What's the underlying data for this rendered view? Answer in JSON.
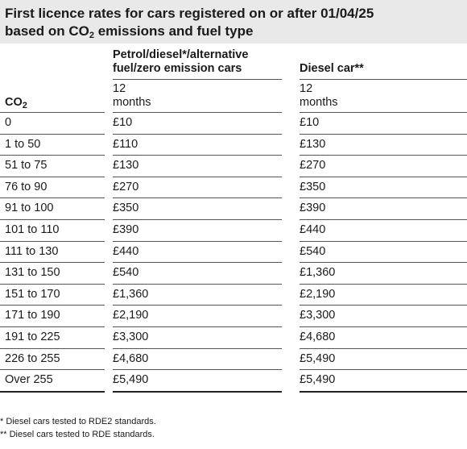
{
  "title": {
    "line1": "First licence rates for cars registered on or after 01/04/25",
    "line2_pre": "based on CO",
    "line2_sub": "2",
    "line2_post": " emissions and fuel type"
  },
  "headers": {
    "co2_pre": "CO",
    "co2_sub": "2",
    "petrol_line1": "Petrol/diesel*/alternative",
    "petrol_line2": "fuel/zero emission cars",
    "diesel": "Diesel car**",
    "period_line1": "12",
    "period_line2": "months"
  },
  "rows": [
    {
      "band": "0",
      "petrol": "£10",
      "diesel": "£10"
    },
    {
      "band": "1 to 50",
      "petrol": "£110",
      "diesel": "£130"
    },
    {
      "band": "51 to 75",
      "petrol": "£130",
      "diesel": "£270"
    },
    {
      "band": "76 to 90",
      "petrol": "£270",
      "diesel": "£350"
    },
    {
      "band": "91 to 100",
      "petrol": "£350",
      "diesel": "£390"
    },
    {
      "band": "101 to 110",
      "petrol": "£390",
      "diesel": "£440"
    },
    {
      "band": "111 to 130",
      "petrol": "£440",
      "diesel": "£540"
    },
    {
      "band": "131 to 150",
      "petrol": "£540",
      "diesel": "£1,360"
    },
    {
      "band": "151 to 170",
      "petrol": "£1,360",
      "diesel": "£2,190"
    },
    {
      "band": "171 to 190",
      "petrol": "£2,190",
      "diesel": "£3,300"
    },
    {
      "band": "191 to 225",
      "petrol": "£3,300",
      "diesel": "£4,680"
    },
    {
      "band": "226 to 255",
      "petrol": "£4,680",
      "diesel": "£5,490"
    },
    {
      "band": "Over 255",
      "petrol": "£5,490",
      "diesel": "£5,490"
    }
  ],
  "footnotes": [
    "*  Diesel cars tested to RDE2 standards.",
    "** Diesel cars tested to RDE standards."
  ],
  "colors": {
    "title_band": "#e9e9e9",
    "text": "#1a1a1a",
    "rule": "#555555"
  }
}
